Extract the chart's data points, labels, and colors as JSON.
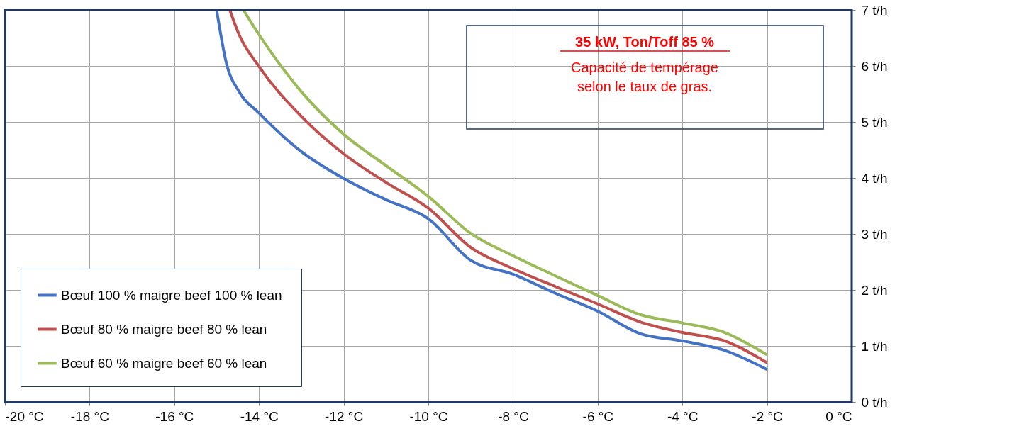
{
  "chart_data": {
    "type": "line",
    "title": "35 kW,  Ton/Toff 85 %",
    "subtitle": "Capacité de tempérage selon le taux de gras.",
    "xlim": [
      -20,
      0
    ],
    "xticks": [
      {
        "value": -20,
        "label": "-20 °C"
      },
      {
        "value": -18,
        "label": "-18 °C"
      },
      {
        "value": -16,
        "label": "-16 °C"
      },
      {
        "value": -14,
        "label": "-14 °C"
      },
      {
        "value": -12,
        "label": "-12 °C"
      },
      {
        "value": -10,
        "label": "-10 °C"
      },
      {
        "value": -8,
        "label": "-8 °C"
      },
      {
        "value": -6,
        "label": "-6 °C"
      },
      {
        "value": -4,
        "label": "-4 °C"
      },
      {
        "value": -2,
        "label": "-2 °C"
      },
      {
        "value": 0,
        "label": "0 °C"
      }
    ],
    "ylim": [
      0,
      7
    ],
    "yticks": [
      {
        "value": 0,
        "label": "0 t/h"
      },
      {
        "value": 1,
        "label": "1 t/h"
      },
      {
        "value": 2,
        "label": "2 t/h"
      },
      {
        "value": 3,
        "label": "3 t/h"
      },
      {
        "value": 4,
        "label": "4 t/h"
      },
      {
        "value": 5,
        "label": "5 t/h"
      },
      {
        "value": 6,
        "label": "6 t/h"
      },
      {
        "value": 7,
        "label": "7 t/h"
      }
    ],
    "grid": true,
    "legend": "bottom left",
    "marker": "none",
    "line_style": "solid",
    "series": [
      {
        "name": "Bœuf 100 % maigre  beef 100 % lean",
        "color": "#4472c4",
        "x": [
          -15.0,
          -14.77,
          -14.47,
          -14.0,
          -13.0,
          -12.0,
          -11.0,
          -10.0,
          -9.0,
          -8.0,
          -7.0,
          -6.0,
          -5.0,
          -4.0,
          -3.0,
          -2.0
        ],
        "values": [
          7.0,
          6.05,
          5.54,
          5.16,
          4.47,
          3.99,
          3.61,
          3.27,
          2.53,
          2.28,
          1.94,
          1.62,
          1.22,
          1.09,
          0.92,
          0.58
        ]
      },
      {
        "name": "Bœuf 80 % maigre  beef 80 % lean",
        "color": "#c0504d",
        "x": [
          -14.69,
          -14.47,
          -14.0,
          -13.0,
          -12.0,
          -11.0,
          -10.0,
          -9.0,
          -8.0,
          -7.0,
          -6.0,
          -5.0,
          -4.0,
          -3.0,
          -2.0
        ],
        "values": [
          7.0,
          6.56,
          5.99,
          5.1,
          4.43,
          3.92,
          3.46,
          2.76,
          2.38,
          2.06,
          1.75,
          1.43,
          1.24,
          1.09,
          0.7
        ]
      },
      {
        "name": "Bœuf 60 % maigre  beef 60 % lean",
        "color": "#9bbb59",
        "x": [
          -14.37,
          -14.0,
          -13.0,
          -12.0,
          -11.0,
          -10.0,
          -9.0,
          -8.0,
          -7.0,
          -6.0,
          -5.0,
          -4.0,
          -3.0,
          -2.0
        ],
        "values": [
          7.0,
          6.56,
          5.54,
          4.78,
          4.22,
          3.67,
          3.01,
          2.61,
          2.25,
          1.9,
          1.56,
          1.41,
          1.24,
          0.84
        ]
      }
    ]
  }
}
